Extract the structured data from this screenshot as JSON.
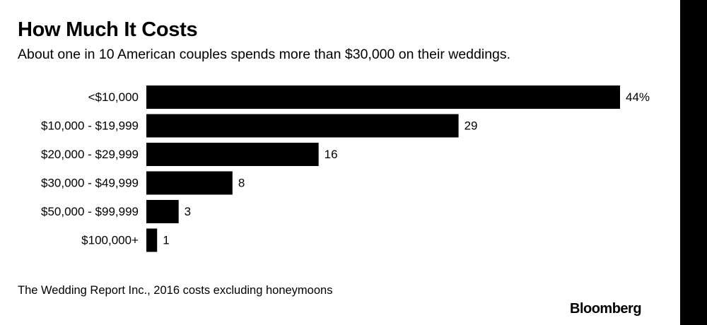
{
  "title": "How Much It Costs",
  "subtitle": "About one in 10 American couples spends more than $30,000 on their weddings.",
  "source": "The Wedding Report Inc., 2016 costs excluding honeymoons",
  "brand": "Bloomberg",
  "colors": {
    "bar": "#000000",
    "background": "#ffffff",
    "edge": "#000000"
  },
  "chart_data": {
    "type": "bar",
    "orientation": "horizontal",
    "title": "How Much It Costs",
    "categories": [
      "<$10,000",
      "$10,000 - $19,999",
      "$20,000 - $29,999",
      "$30,000 - $49,999",
      "$50,000 - $99,999",
      "$100,000+"
    ],
    "values": [
      44,
      29,
      16,
      8,
      3,
      1
    ],
    "value_labels": [
      "44%",
      "29",
      "16",
      "8",
      "3",
      "1"
    ],
    "unit": "%",
    "xlim": [
      0,
      44
    ]
  }
}
